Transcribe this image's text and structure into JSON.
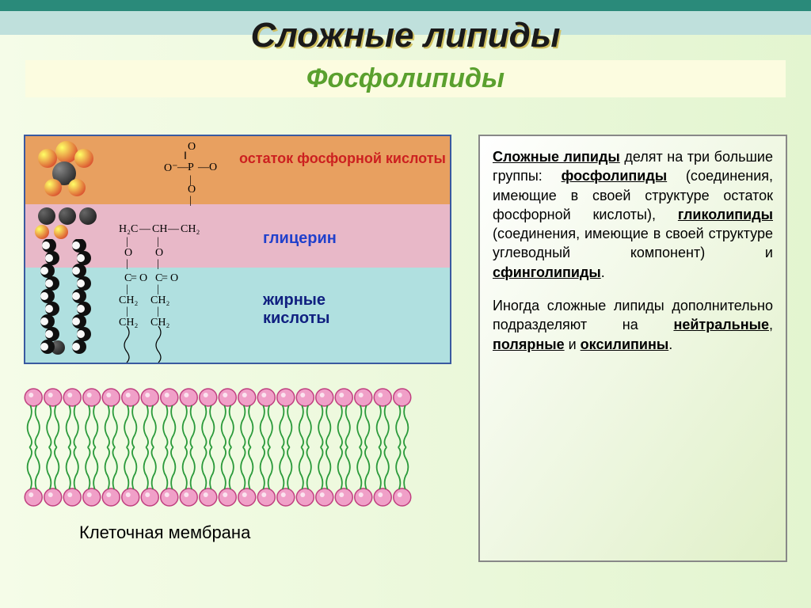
{
  "colors": {
    "stripe_dark": "#2a8a7a",
    "stripe_light": "#bfe0dc",
    "page_bg_from": "#f5fce8",
    "page_bg_to": "#e3f5d0",
    "subtitle_band": "#fcfce0",
    "subtitle_text": "#5aa02e",
    "frame_border": "#3a5aa0",
    "zone_top": "#e8a060",
    "zone_mid": "#e8b8c8",
    "zone_bot": "#b0e0e0",
    "label_red": "#cc2020",
    "label_blue": "#2040cc",
    "label_navy": "#102080",
    "sphere_red": "#d02020",
    "sphere_black": "#101010",
    "sphere_white": "#f8f8f8",
    "membrane_head_fill": "#f0a0c8",
    "membrane_head_stroke": "#c04080",
    "membrane_tail": "#2a9a3a"
  },
  "title": "Сложные липиды",
  "subtitle": "Фосфолипиды",
  "diagram": {
    "label_top": "остаток фосфорной кислоты",
    "label_mid": "глицерин",
    "label_bot": "жирные кислоты",
    "chem": {
      "phosphate_O1": "O",
      "phosphate_Ominus": "O⁻",
      "phosphate_P": "P",
      "phosphate_Oeq": "O",
      "phosphate_Obot": "O",
      "gly_H2C": "H₂C",
      "gly_CH": "CH",
      "gly_CH2": "CH₂",
      "ester_C": "C",
      "ester_Oeq": "O",
      "ester_O": "O",
      "ch2": "CH₂"
    }
  },
  "membrane": {
    "n_heads": 20,
    "caption": "Клеточная мембрана"
  },
  "panel": {
    "p1_lead": "Сложные липиды",
    "p1_rest": " делят на три большие группы: ",
    "k1": "фосфолипиды",
    "p1_def": " (соединения, имеющие в своей структуре остаток фосфорной кислоты), ",
    "k2": "гликолипиды",
    "p2_def": " (соединения, имеющие в своей структуре углеводный компонент) и ",
    "k3": "сфинголипиды",
    "p2_end": ".",
    "p3a": "Иногда сложные липиды дополнительно подразделяют на ",
    "k4": "нейтральные",
    "sep": ", ",
    "k5": "полярные",
    "and": " и ",
    "k6": "оксилипины",
    "p3_end": "."
  }
}
